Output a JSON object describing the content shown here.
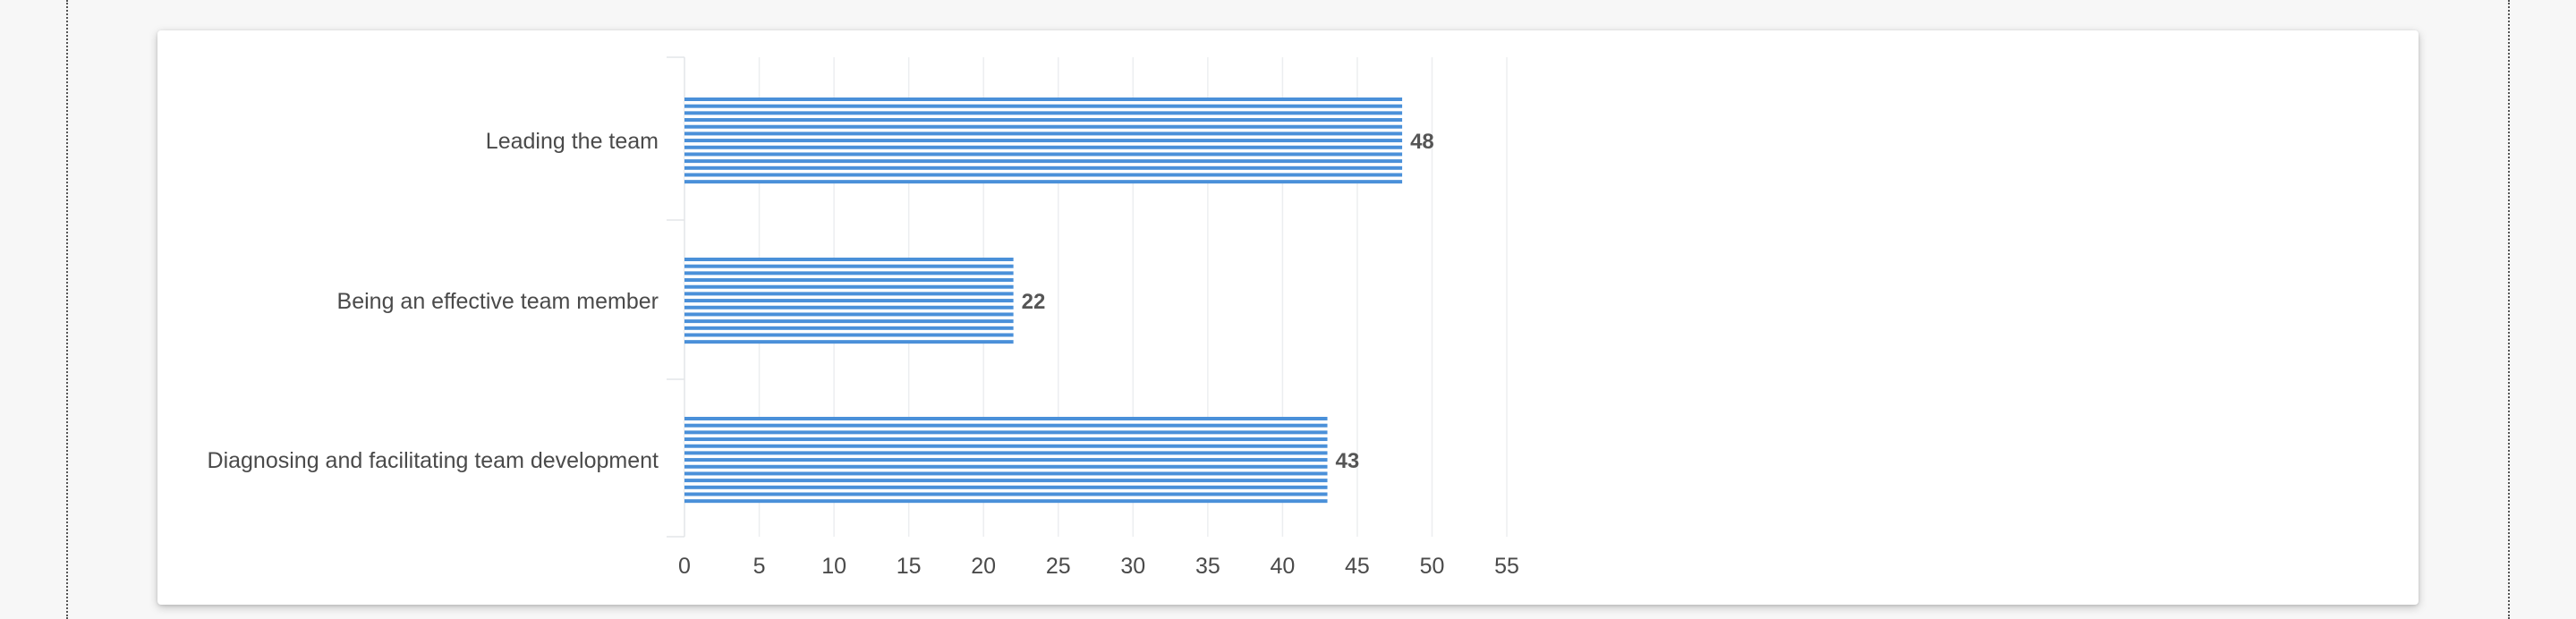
{
  "chart_data": {
    "type": "bar",
    "orientation": "horizontal",
    "categories": [
      "Leading the team",
      "Being an effective team member",
      "Diagnosing and facilitating team development"
    ],
    "values": [
      48,
      22,
      43
    ],
    "xlim": [
      0,
      55
    ],
    "xticks": [
      0,
      5,
      10,
      15,
      20,
      25,
      30,
      35,
      40,
      45,
      50,
      55
    ],
    "grid": true,
    "data_labels": true,
    "bar_color": "#4a90d9",
    "bar_pattern": "horizontal-stripes"
  }
}
